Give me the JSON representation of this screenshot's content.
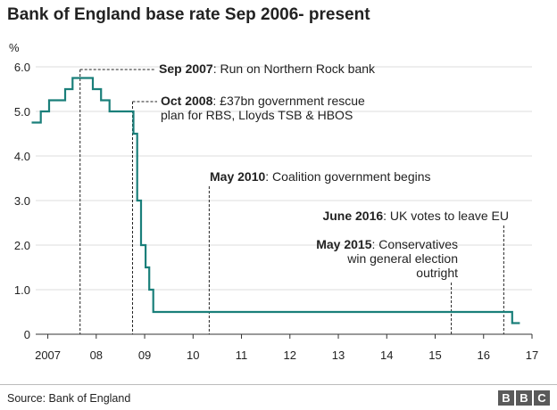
{
  "chart_data": {
    "type": "line",
    "title": "Bank of England base rate Sep 2006- present",
    "ylabel": "%",
    "xlabel": "",
    "ylim": [
      0,
      6.0
    ],
    "xlim": [
      "2007-01-01",
      "2017-01-01"
    ],
    "y_ticks": [
      "0",
      "1.0",
      "2.0",
      "3.0",
      "4.0",
      "5.0",
      "6.0"
    ],
    "x_ticks": [
      "2007",
      "08",
      "09",
      "10",
      "11",
      "12",
      "13",
      "14",
      "15",
      "16",
      "17"
    ],
    "grid": "horizontal",
    "series": [
      {
        "color": "#1a7f7a",
        "points": [
          [
            "2006-09-01",
            4.75
          ],
          [
            "2006-11-09",
            5.0
          ],
          [
            "2007-01-11",
            5.25
          ],
          [
            "2007-05-10",
            5.5
          ],
          [
            "2007-07-05",
            5.75
          ],
          [
            "2007-12-06",
            5.5
          ],
          [
            "2008-02-07",
            5.25
          ],
          [
            "2008-04-10",
            5.0
          ],
          [
            "2008-10-08",
            4.5
          ],
          [
            "2008-11-06",
            3.0
          ],
          [
            "2008-12-04",
            2.0
          ],
          [
            "2009-01-08",
            1.5
          ],
          [
            "2009-02-05",
            1.0
          ],
          [
            "2009-03-05",
            0.5
          ],
          [
            "2016-08-04",
            0.25
          ],
          [
            "2016-10-01",
            0.25
          ]
        ]
      }
    ],
    "annotations": [
      {
        "date": "2007-09-01",
        "bold": "Sep 2007",
        "text": ": Run on Northern Rock bank"
      },
      {
        "date": "2008-10-01",
        "bold": "Oct 2008",
        "text": ": £37bn government rescue",
        "text2": "plan for RBS, Lloyds TSB & HBOS"
      },
      {
        "date": "2010-05-01",
        "bold": "May 2010",
        "text": ": Coalition government begins"
      },
      {
        "date": "2016-06-01",
        "bold": "June 2016",
        "text": ": UK votes to leave EU"
      },
      {
        "date": "2015-05-01",
        "bold": "May 2015",
        "text": ": Conservatives",
        "text2": "win general election",
        "text3": "outright"
      }
    ]
  },
  "footer": {
    "source": "Source: Bank of England",
    "logo": [
      "B",
      "B",
      "C"
    ]
  },
  "colors": {
    "line": "#1a7f7a",
    "grid": "#dddddd",
    "axis": "#333333",
    "annotation_line": "#222222"
  }
}
